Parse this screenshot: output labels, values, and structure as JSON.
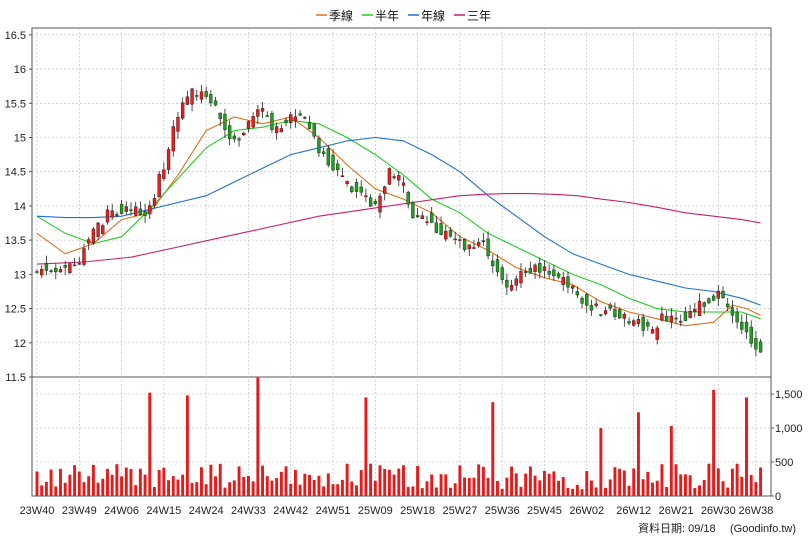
{
  "legend": {
    "items": [
      {
        "label": "季線",
        "color": "#e07020"
      },
      {
        "label": "半年",
        "color": "#22cc22"
      },
      {
        "label": "年線",
        "color": "#1f6fd6"
      },
      {
        "label": "三年",
        "color": "#cc1f6a"
      }
    ],
    "placement": "top-center"
  },
  "footer": {
    "date_label": "資料日期: 09/18",
    "source_label": "(Goodinfo.tw)"
  },
  "colors": {
    "up": "#ee1c1c",
    "down": "#1ea21e",
    "wick": "#222222",
    "volume": "#e21b1b",
    "grid": "#b8b8b8",
    "plot_bg": "#ffffff"
  },
  "chart_data": [
    {
      "type": "candlestick",
      "title": "",
      "ylim": [
        11.5,
        16.6
      ],
      "y_ticks": [
        11.5,
        12,
        12.5,
        13,
        13.5,
        14,
        14.5,
        15,
        15.5,
        16,
        16.5
      ],
      "y_tick_labels": [
        "11.5",
        "12",
        "12.5",
        "13",
        "13.5",
        "14",
        "14.5",
        "15",
        "15.5",
        "16",
        "16.5"
      ],
      "x_tick_labels": [
        "23W40",
        "23W49",
        "24W06",
        "24W15",
        "24W24",
        "24W33",
        "24W42",
        "24W51",
        "25W09",
        "25W18",
        "25W27",
        "25W36",
        "25W45",
        "26W02",
        "26W12",
        "26W21",
        "26W30",
        "26W38"
      ],
      "x_tick_index": [
        0,
        9,
        18,
        27,
        36,
        45,
        54,
        63,
        72,
        81,
        90,
        99,
        108,
        117,
        127,
        136,
        145,
        153
      ],
      "close_path": [
        [
          0,
          13.1
        ],
        [
          4,
          13.0
        ],
        [
          8,
          13.1
        ],
        [
          12,
          13.6
        ],
        [
          16,
          13.95
        ],
        [
          20,
          13.9
        ],
        [
          24,
          13.95
        ],
        [
          27,
          14.6
        ],
        [
          30,
          15.35
        ],
        [
          33,
          15.7
        ],
        [
          36,
          15.6
        ],
        [
          39,
          15.3
        ],
        [
          42,
          14.9
        ],
        [
          45,
          15.2
        ],
        [
          48,
          15.4
        ],
        [
          50,
          15.1
        ],
        [
          54,
          15.3
        ],
        [
          57,
          15.3
        ],
        [
          60,
          14.8
        ],
        [
          63,
          14.6
        ],
        [
          66,
          14.3
        ],
        [
          69,
          14.2
        ],
        [
          72,
          14.0
        ],
        [
          75,
          14.5
        ],
        [
          78,
          14.3
        ],
        [
          80,
          13.9
        ],
        [
          83,
          13.8
        ],
        [
          86,
          13.6
        ],
        [
          89,
          13.5
        ],
        [
          92,
          13.4
        ],
        [
          95,
          13.45
        ],
        [
          97,
          13.15
        ],
        [
          100,
          12.75
        ],
        [
          102,
          12.9
        ],
        [
          104,
          13.1
        ],
        [
          108,
          13.05
        ],
        [
          110,
          13.0
        ],
        [
          113,
          12.85
        ],
        [
          116,
          12.65
        ],
        [
          119,
          12.5
        ],
        [
          122,
          12.45
        ],
        [
          125,
          12.35
        ],
        [
          128,
          12.3
        ],
        [
          131,
          12.15
        ],
        [
          133,
          12.35
        ],
        [
          136,
          12.3
        ],
        [
          138,
          12.4
        ],
        [
          141,
          12.55
        ],
        [
          143,
          12.6
        ],
        [
          145,
          12.75
        ],
        [
          147,
          12.5
        ],
        [
          149,
          12.3
        ],
        [
          151,
          12.15
        ],
        [
          153,
          11.98
        ],
        [
          154,
          11.85
        ]
      ],
      "series": [
        {
          "name": "季線",
          "x": [
            0,
            6,
            12,
            18,
            24,
            30,
            36,
            42,
            48,
            54,
            60,
            66,
            72,
            78,
            84,
            90,
            96,
            102,
            108,
            114,
            120,
            126,
            132,
            138,
            144,
            148,
            151,
            154
          ],
          "values": [
            13.6,
            13.3,
            13.45,
            13.8,
            13.9,
            14.45,
            15.1,
            15.3,
            15.2,
            15.3,
            15.0,
            14.6,
            14.25,
            14.1,
            13.9,
            13.55,
            13.35,
            13.1,
            12.95,
            12.85,
            12.6,
            12.45,
            12.35,
            12.25,
            12.3,
            12.55,
            12.5,
            12.4
          ]
        },
        {
          "name": "半年",
          "x": [
            0,
            6,
            12,
            18,
            24,
            30,
            36,
            42,
            48,
            54,
            60,
            66,
            72,
            78,
            84,
            90,
            96,
            102,
            108,
            114,
            120,
            126,
            132,
            138,
            144,
            150,
            154
          ],
          "values": [
            13.85,
            13.6,
            13.45,
            13.55,
            13.95,
            14.4,
            14.85,
            15.1,
            15.15,
            15.25,
            15.2,
            15.0,
            14.75,
            14.45,
            14.1,
            13.9,
            13.6,
            13.4,
            13.2,
            13.0,
            12.85,
            12.65,
            12.5,
            12.45,
            12.45,
            12.45,
            12.35
          ]
        },
        {
          "name": "年線",
          "x": [
            0,
            6,
            12,
            18,
            24,
            30,
            36,
            42,
            48,
            54,
            60,
            66,
            72,
            78,
            84,
            90,
            96,
            102,
            108,
            114,
            120,
            126,
            132,
            138,
            144,
            150,
            154
          ],
          "values": [
            13.85,
            13.83,
            13.83,
            13.85,
            13.95,
            14.05,
            14.15,
            14.35,
            14.55,
            14.75,
            14.85,
            14.95,
            15.0,
            14.95,
            14.75,
            14.5,
            14.15,
            13.85,
            13.55,
            13.3,
            13.15,
            13.0,
            12.9,
            12.8,
            12.75,
            12.65,
            12.55
          ]
        },
        {
          "name": "三年",
          "x": [
            0,
            10,
            20,
            30,
            40,
            50,
            60,
            70,
            80,
            85,
            90,
            95,
            100,
            105,
            110,
            115,
            120,
            126,
            132,
            138,
            144,
            150,
            154
          ],
          "values": [
            13.15,
            13.18,
            13.25,
            13.4,
            13.55,
            13.7,
            13.85,
            13.95,
            14.05,
            14.1,
            14.15,
            14.17,
            14.18,
            14.18,
            14.17,
            14.15,
            14.1,
            14.05,
            13.98,
            13.9,
            13.85,
            13.8,
            13.75
          ]
        }
      ]
    },
    {
      "type": "bar",
      "title": "",
      "ylim": [
        0,
        1750
      ],
      "y_ticks": [
        0,
        500,
        1000,
        1500
      ],
      "y_tick_labels": [
        "0",
        "500",
        "1,000",
        "1,500"
      ],
      "peaks": [
        [
          24,
          1520
        ],
        [
          32,
          1480
        ],
        [
          47,
          1800
        ],
        [
          70,
          1450
        ],
        [
          97,
          1380
        ],
        [
          120,
          1000
        ],
        [
          128,
          1230
        ],
        [
          135,
          1030
        ],
        [
          144,
          1560
        ],
        [
          151,
          1450
        ]
      ],
      "base_level": 280
    }
  ]
}
